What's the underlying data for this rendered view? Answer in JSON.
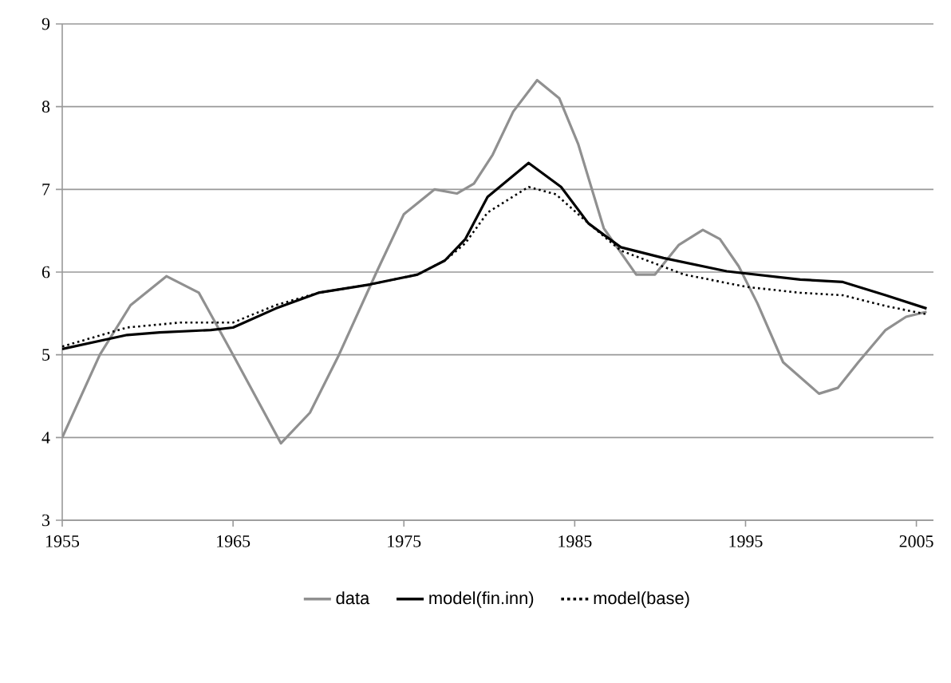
{
  "chart_data": {
    "type": "line",
    "xlim": [
      1955,
      2006
    ],
    "ylim": [
      3,
      9
    ],
    "xticks": [
      1955,
      1965,
      1975,
      1985,
      1995,
      2005
    ],
    "yticks": [
      3,
      4,
      5,
      6,
      7,
      8,
      9
    ],
    "grid": "y",
    "legend": "bottom",
    "marker": "none",
    "series": [
      {
        "name": "data",
        "color": "#909090",
        "line_style": "solid",
        "x": [
          1955,
          1957.2,
          1959,
          1961.1,
          1963,
          1965,
          1967.8,
          1969.5,
          1971.2,
          1973.4,
          1975,
          1976.8,
          1978.1,
          1979.1,
          1980.2,
          1981.4,
          1982.8,
          1984.1,
          1985.2,
          1986.7,
          1988.6,
          1989.7,
          1991.1,
          1992.5,
          1993.5,
          1994.6,
          1995.7,
          1997.2,
          1999.3,
          2000.4,
          2001.6,
          2003.2,
          2004.4,
          2005.6
        ],
        "values": [
          4.0,
          5.0,
          5.6,
          5.95,
          5.75,
          5.0,
          3.93,
          4.3,
          5.0,
          6.0,
          6.7,
          7.0,
          6.95,
          7.07,
          7.42,
          7.94,
          8.32,
          8.1,
          7.55,
          6.53,
          5.97,
          5.97,
          6.33,
          6.51,
          6.4,
          6.07,
          5.62,
          4.91,
          4.53,
          4.6,
          4.91,
          5.3,
          5.46,
          5.52
        ]
      },
      {
        "name": "model(fin.inn)",
        "color": "#000000",
        "line_style": "solid",
        "x": [
          1955,
          1958.8,
          1960.7,
          1963.7,
          1965,
          1967.5,
          1970,
          1973,
          1975.8,
          1977.4,
          1978.6,
          1979.9,
          1982.3,
          1984.2,
          1985.8,
          1987.7,
          1990.2,
          1993.9,
          1998.2,
          2000.7,
          2003.2,
          2005.6
        ],
        "values": [
          5.07,
          5.24,
          5.27,
          5.3,
          5.33,
          5.56,
          5.75,
          5.85,
          5.97,
          6.14,
          6.4,
          6.91,
          7.32,
          7.03,
          6.59,
          6.3,
          6.17,
          6.01,
          5.91,
          5.88,
          5.72,
          5.56
        ]
      },
      {
        "name": "model(base)",
        "color": "#000000",
        "line_style": "dotted",
        "x": [
          1955,
          1958.8,
          1961.9,
          1965,
          1967.5,
          1970,
          1973,
          1975.8,
          1977.4,
          1978.6,
          1979.9,
          1982.3,
          1983.9,
          1985.8,
          1987.7,
          1991.4,
          1995.1,
          1998.2,
          2000.7,
          2003.2,
          2005.6
        ],
        "values": [
          5.1,
          5.33,
          5.39,
          5.39,
          5.6,
          5.75,
          5.85,
          5.97,
          6.14,
          6.35,
          6.72,
          7.03,
          6.94,
          6.59,
          6.26,
          5.97,
          5.82,
          5.75,
          5.72,
          5.59,
          5.49
        ]
      }
    ]
  }
}
